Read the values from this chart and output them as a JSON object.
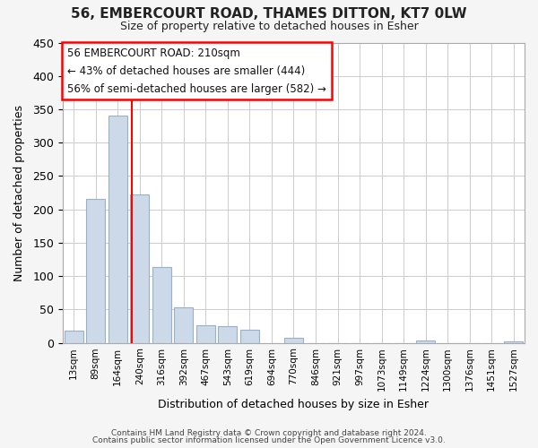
{
  "title1": "56, EMBERCOURT ROAD, THAMES DITTON, KT7 0LW",
  "title2": "Size of property relative to detached houses in Esher",
  "xlabel": "Distribution of detached houses by size in Esher",
  "ylabel": "Number of detached properties",
  "bar_labels": [
    "13sqm",
    "89sqm",
    "164sqm",
    "240sqm",
    "316sqm",
    "392sqm",
    "467sqm",
    "543sqm",
    "619sqm",
    "694sqm",
    "770sqm",
    "846sqm",
    "921sqm",
    "997sqm",
    "1073sqm",
    "1149sqm",
    "1224sqm",
    "1300sqm",
    "1376sqm",
    "1451sqm",
    "1527sqm"
  ],
  "bar_values": [
    18,
    215,
    340,
    222,
    113,
    53,
    26,
    25,
    20,
    0,
    7,
    0,
    0,
    0,
    0,
    0,
    3,
    0,
    0,
    0,
    2
  ],
  "bar_color": "#ccd9e8",
  "bar_edge_color": "#9ab0c8",
  "ylim": [
    0,
    450
  ],
  "yticks": [
    0,
    50,
    100,
    150,
    200,
    250,
    300,
    350,
    400,
    450
  ],
  "property_line_x": 2.65,
  "annotation_title": "56 EMBERCOURT ROAD: 210sqm",
  "annotation_line1": "← 43% of detached houses are smaller (444)",
  "annotation_line2": "56% of semi-detached houses are larger (582) →",
  "footer1": "Contains HM Land Registry data © Crown copyright and database right 2024.",
  "footer2": "Contains public sector information licensed under the Open Government Licence v3.0.",
  "background_color": "#f5f5f5",
  "plot_background": "#ffffff",
  "grid_color": "#cccccc"
}
